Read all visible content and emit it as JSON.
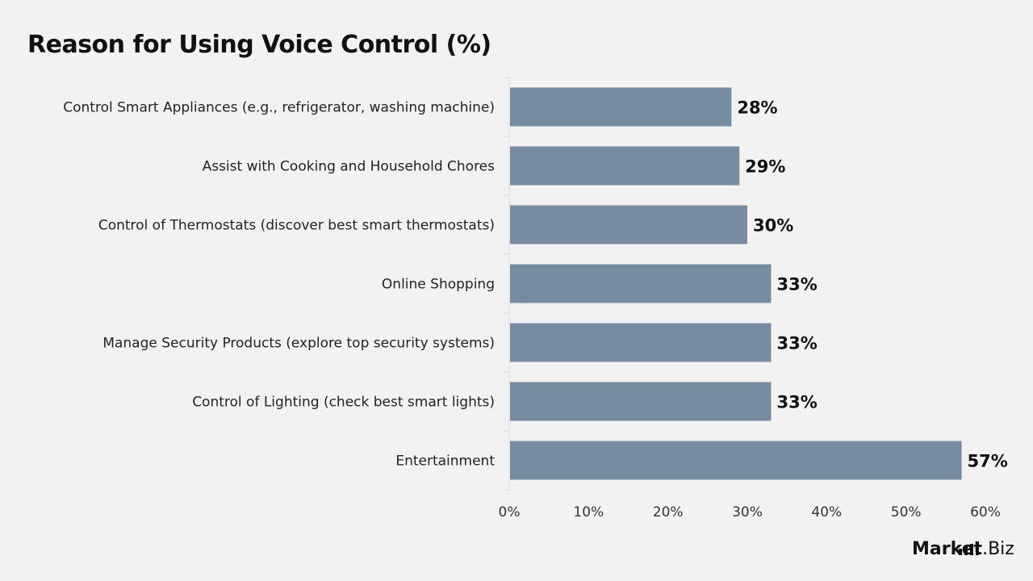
{
  "chart_data": {
    "type": "bar",
    "orientation": "horizontal",
    "title": "Reason for Using Voice Control (%)",
    "categories": [
      "Control Smart Appliances (e.g., refrigerator, washing machine)",
      "Assist with Cooking and Household Chores",
      "Control of Thermostats (discover best smart thermostats)",
      "Online Shopping",
      "Manage Security Products (explore top security systems)",
      "Control of Lighting (check best smart lights)",
      "Entertainment"
    ],
    "values": [
      28,
      29,
      30,
      33,
      33,
      33,
      57
    ],
    "data_labels": [
      "28%",
      "29%",
      "30%",
      "33%",
      "33%",
      "33%",
      "57%"
    ],
    "xlim": [
      0,
      60
    ],
    "x_ticks": [
      "0%",
      "10%",
      "20%",
      "30%",
      "40%",
      "50%",
      "60%"
    ],
    "xlabel": "",
    "ylabel": "",
    "grid": false,
    "bar_color": "#778ba1"
  },
  "logo": {
    "bold": "Market",
    "light": ".Biz"
  }
}
